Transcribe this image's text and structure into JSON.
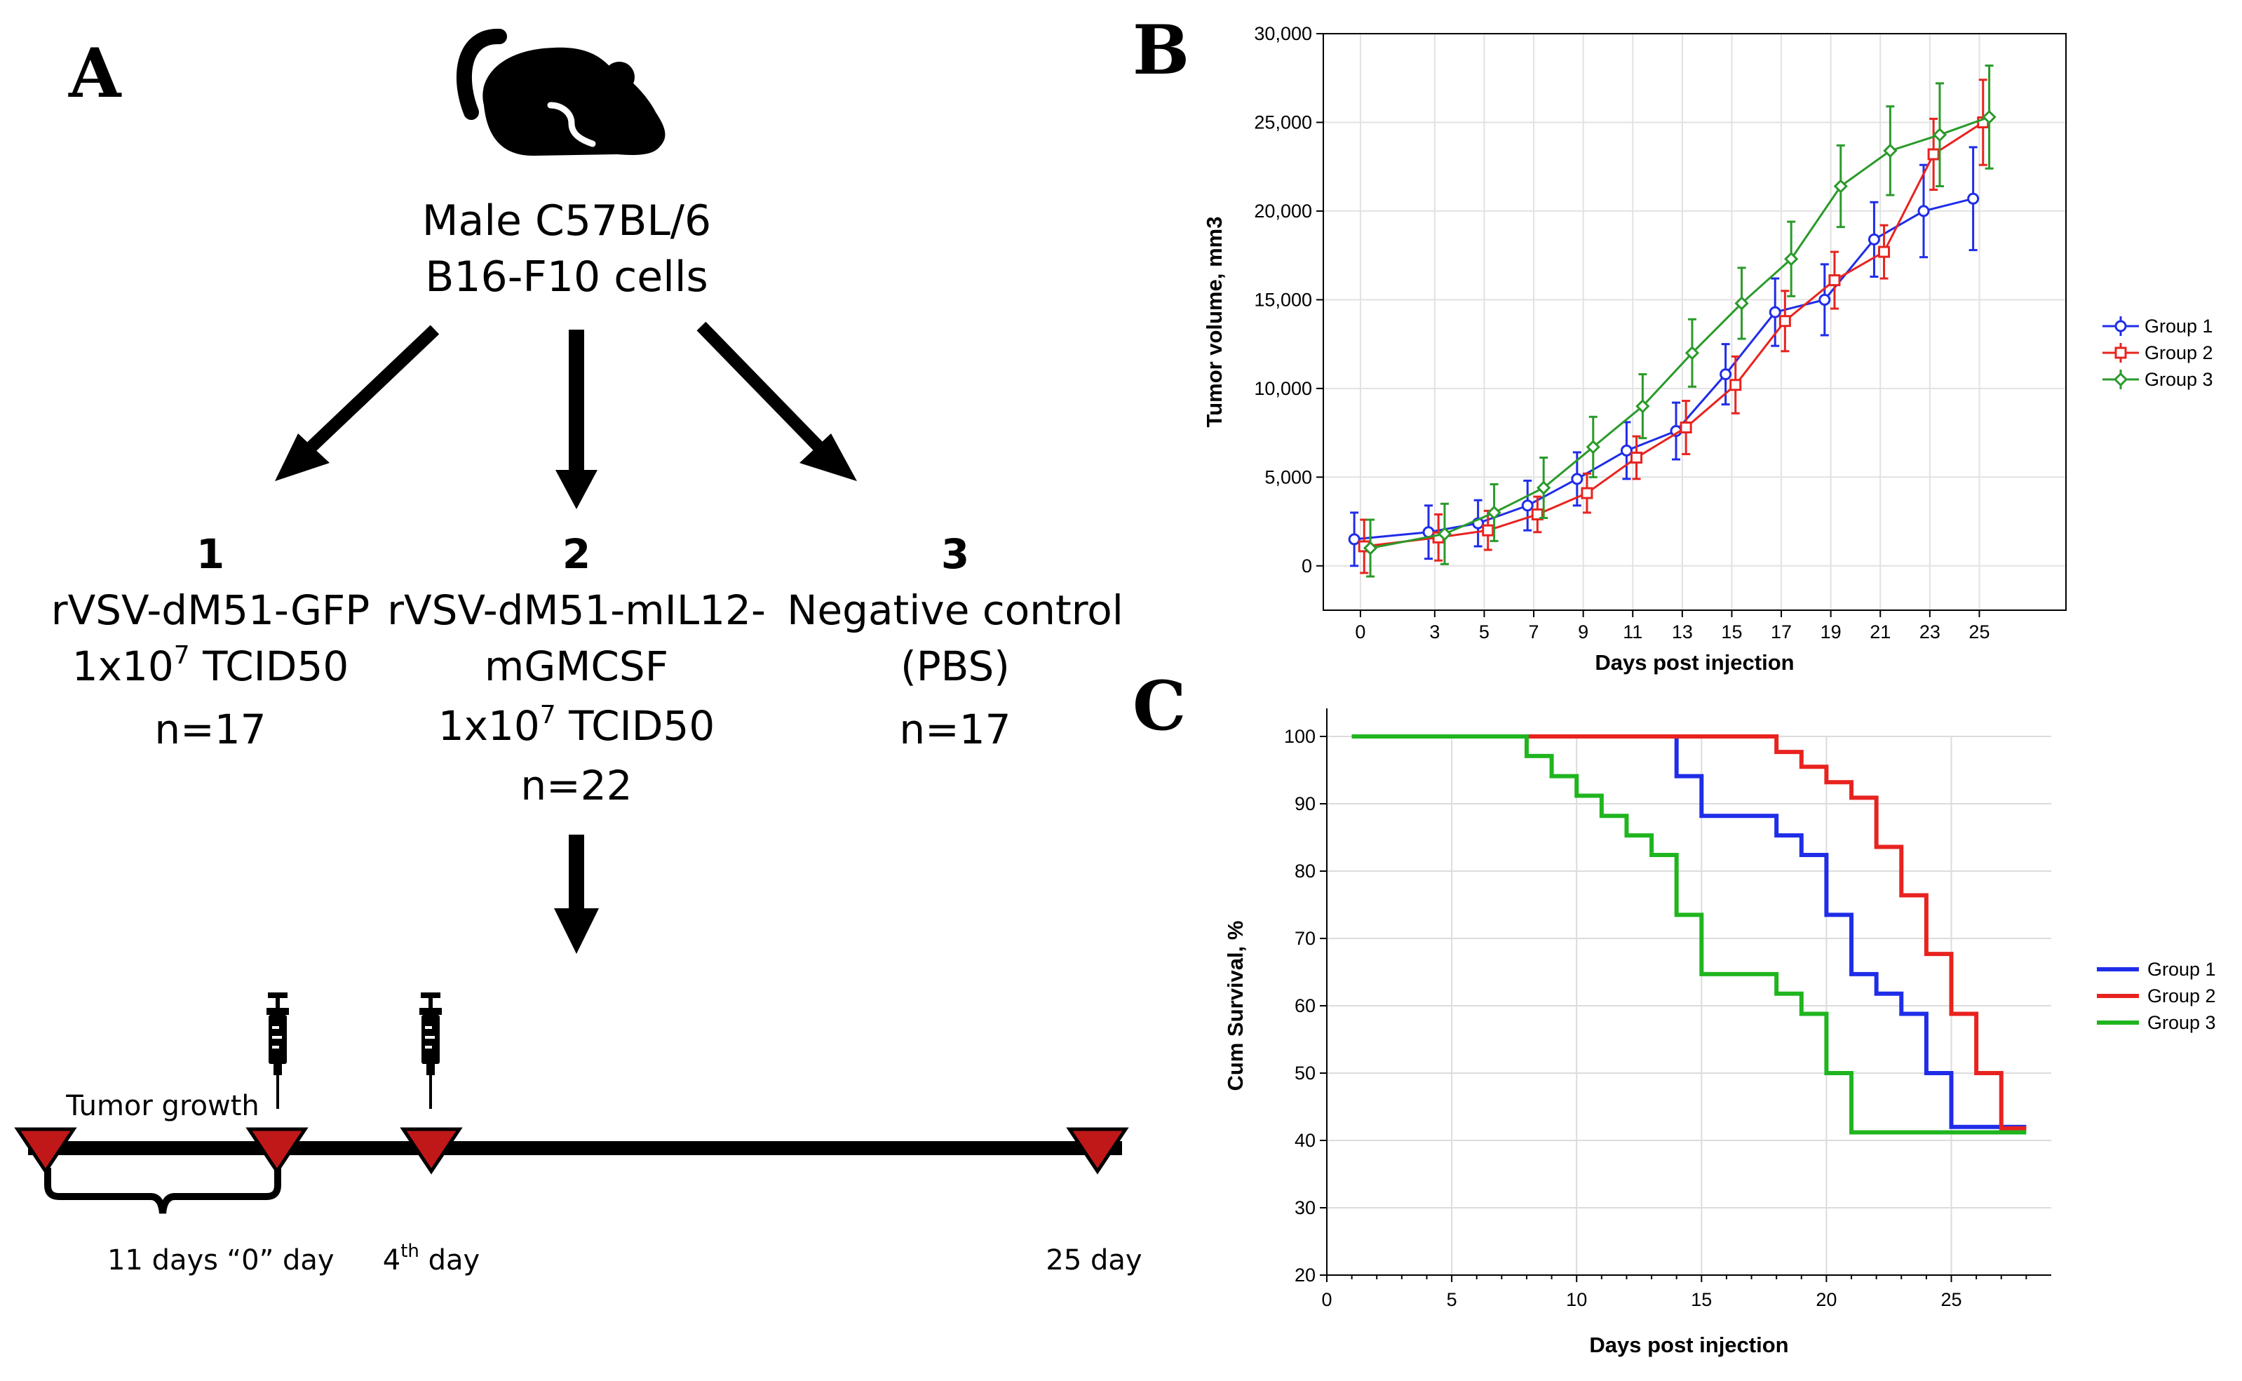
{
  "panels": {
    "a": "A",
    "b": "B",
    "c": "C"
  },
  "diagram": {
    "mouse_line1": "Male C57BL/6",
    "mouse_line2": "B16-F10 cells",
    "groups": [
      {
        "num": "1",
        "line1": "rVSV-dM51-GFP",
        "line2_pre": "1x10",
        "line2_sup": "7",
        "line2_post": " TCID50",
        "line3": "n=17"
      },
      {
        "num": "2",
        "line1": "rVSV-dM51-mIL12-",
        "line1b": "mGMCSF",
        "line2_pre": "1x10",
        "line2_sup": "7",
        "line2_post": " TCID50",
        "line3": "n=22"
      },
      {
        "num": "3",
        "line1": "Negative control",
        "line1b": "(PBS)",
        "line3": "n=17"
      }
    ],
    "timeline": {
      "tumor_growth": "Tumor growth",
      "eleven_days": "11 days",
      "zero_day": "“0” day",
      "fourth_pre": "4",
      "fourth_sup": "th",
      "fourth_post": " day",
      "day25": "25 day"
    }
  },
  "colors": {
    "group1": "#1f2de8",
    "group2": "#e8231f",
    "group3": "#2a9a2a",
    "group3_survival": "#1fb51f",
    "marker": "#c01818"
  },
  "chart_data": [
    {
      "type": "line",
      "panel": "B",
      "xlabel": "Days post injection",
      "ylabel": "Tumor volume, mm3",
      "x_ticks": [
        0,
        3,
        5,
        7,
        9,
        11,
        13,
        15,
        17,
        19,
        21,
        23,
        25
      ],
      "y_ticks": [
        "0",
        "5,000",
        "10,000",
        "15,000",
        "20,000",
        "25,000",
        "30,000"
      ],
      "ylim": [
        -2500,
        30000
      ],
      "grid": true,
      "legend": "right",
      "series": [
        {
          "name": "Group 1",
          "x": [
            0,
            3,
            5,
            7,
            9,
            11,
            13,
            15,
            17,
            19,
            21,
            23,
            25
          ],
          "y": [
            1500,
            1900,
            2400,
            3400,
            4900,
            6500,
            7600,
            10800,
            14300,
            15000,
            18400,
            20000,
            20700
          ],
          "err": [
            1500,
            1500,
            1300,
            1400,
            1500,
            1600,
            1600,
            1700,
            1900,
            2000,
            2100,
            2600,
            2900
          ]
        },
        {
          "name": "Group 2",
          "x": [
            0,
            3,
            5,
            7,
            9,
            11,
            13,
            15,
            17,
            19,
            21,
            23,
            25
          ],
          "y": [
            1100,
            1600,
            2000,
            2900,
            4100,
            6100,
            7800,
            10200,
            13800,
            16100,
            17700,
            23200,
            25000
          ],
          "err": [
            1500,
            1300,
            1100,
            1000,
            1100,
            1200,
            1500,
            1600,
            1700,
            1600,
            1500,
            2000,
            2400
          ]
        },
        {
          "name": "Group 3",
          "x": [
            0,
            3,
            5,
            7,
            9,
            11,
            13,
            15,
            17,
            19,
            21,
            23,
            25
          ],
          "y": [
            1000,
            1800,
            3000,
            4400,
            6700,
            9000,
            12000,
            14800,
            17300,
            21400,
            23400,
            24300,
            25300
          ],
          "err": [
            1600,
            1700,
            1600,
            1700,
            1700,
            1800,
            1900,
            2000,
            2100,
            2300,
            2500,
            2900,
            2900
          ]
        }
      ]
    },
    {
      "type": "line",
      "panel": "C",
      "step": true,
      "xlabel": "Days post injection",
      "ylabel": "Cum Survival, %",
      "x_ticks": [
        0,
        5,
        10,
        15,
        20,
        25
      ],
      "y_ticks": [
        20,
        30,
        40,
        50,
        60,
        70,
        80,
        90,
        100
      ],
      "xlim": [
        0,
        29
      ],
      "ylim": [
        20,
        100
      ],
      "grid": true,
      "legend": "right",
      "series": [
        {
          "name": "Group 1",
          "x": [
            1,
            14,
            15,
            18,
            19,
            20,
            21,
            22,
            23,
            24,
            25,
            28
          ],
          "y": [
            100,
            94.1,
            88.2,
            85.3,
            82.4,
            73.5,
            64.7,
            61.8,
            58.8,
            50.0,
            42.0,
            42.0
          ]
        },
        {
          "name": "Group 2",
          "x": [
            1,
            18,
            19,
            20,
            21,
            22,
            23,
            24,
            25,
            26,
            27,
            28
          ],
          "y": [
            100,
            97.7,
            95.5,
            93.2,
            90.9,
            83.6,
            76.4,
            67.7,
            58.8,
            50.0,
            41.8,
            41.8
          ]
        },
        {
          "name": "Group 3",
          "x": [
            1,
            8,
            9,
            10,
            11,
            12,
            13,
            14,
            15,
            18,
            19,
            20,
            21,
            28
          ],
          "y": [
            100,
            97.1,
            94.1,
            91.2,
            88.2,
            85.3,
            82.4,
            73.5,
            64.7,
            61.8,
            58.8,
            50.0,
            41.2,
            41.2
          ]
        }
      ]
    }
  ]
}
